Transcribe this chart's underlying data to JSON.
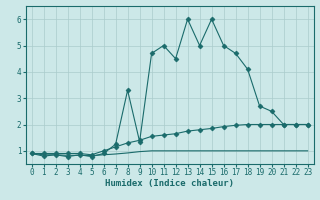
{
  "title": "",
  "xlabel": "Humidex (Indice chaleur)",
  "bg_color": "#cce8e8",
  "line_color": "#1a6b6b",
  "grid_color": "#aacccc",
  "xlim": [
    -0.5,
    23.5
  ],
  "ylim": [
    0.5,
    6.5
  ],
  "yticks": [
    1,
    2,
    3,
    4,
    5,
    6
  ],
  "xticks": [
    0,
    1,
    2,
    3,
    4,
    5,
    6,
    7,
    8,
    9,
    10,
    11,
    12,
    13,
    14,
    15,
    16,
    17,
    18,
    19,
    20,
    21,
    22,
    23
  ],
  "x": [
    0,
    1,
    2,
    3,
    4,
    5,
    6,
    7,
    8,
    9,
    10,
    11,
    12,
    13,
    14,
    15,
    16,
    17,
    18,
    19,
    20,
    21,
    22,
    23
  ],
  "series1": [
    0.9,
    0.8,
    0.85,
    0.78,
    0.85,
    0.78,
    0.9,
    1.25,
    3.3,
    1.35,
    4.7,
    5.0,
    4.5,
    6.0,
    5.0,
    6.0,
    5.0,
    4.7,
    4.1,
    2.7,
    2.5,
    2.0,
    2.0,
    2.0
  ],
  "series2": [
    0.9,
    0.9,
    0.9,
    0.9,
    0.9,
    0.85,
    1.0,
    1.15,
    1.3,
    1.4,
    1.55,
    1.6,
    1.65,
    1.75,
    1.8,
    1.85,
    1.92,
    1.97,
    2.0,
    2.0,
    2.0,
    2.0,
    2.0,
    2.0
  ],
  "series3": [
    0.9,
    0.85,
    0.85,
    0.83,
    0.83,
    0.82,
    0.85,
    0.88,
    0.92,
    0.97,
    1.0,
    1.0,
    1.0,
    1.0,
    1.0,
    1.0,
    1.0,
    1.0,
    1.0,
    1.0,
    1.0,
    1.0,
    1.0,
    1.0
  ],
  "marker_style": "D",
  "marker_size": 2.5,
  "linewidth": 0.8,
  "tick_fontsize": 5.5,
  "xlabel_fontsize": 6.5
}
